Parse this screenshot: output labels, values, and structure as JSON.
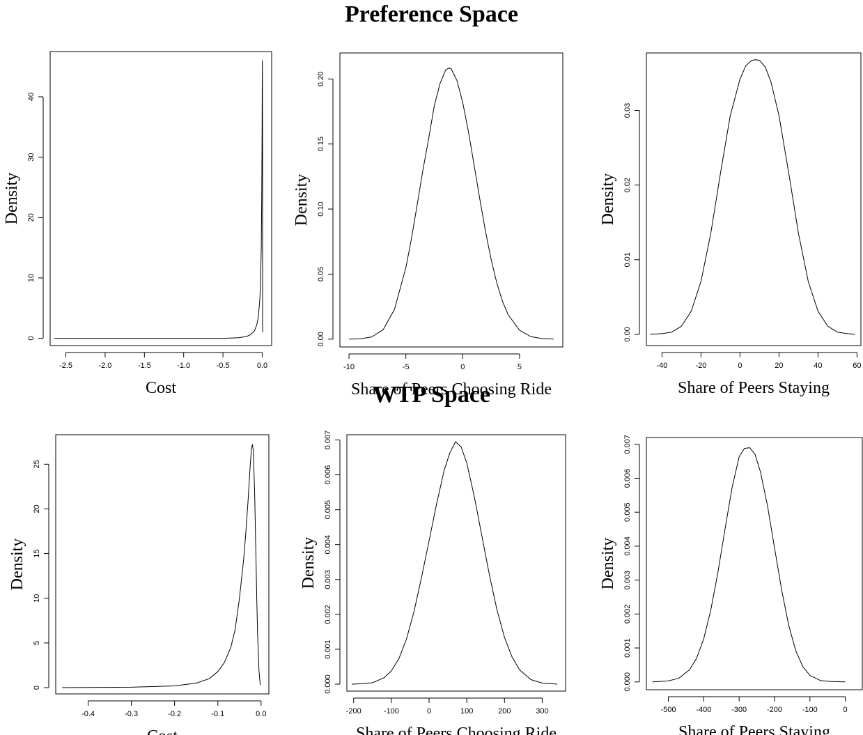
{
  "sections": {
    "top_title": "Preference Space",
    "bottom_title": "WTP Space"
  },
  "chart_data": [
    {
      "type": "line",
      "panel": "preference-cost",
      "xlabel": "Cost",
      "ylabel": "Density",
      "xlim": [
        -2.7,
        0.12
      ],
      "ylim": [
        -1.2,
        47.5
      ],
      "xticks": [
        -2.5,
        -2.0,
        -1.5,
        -1.0,
        -0.5,
        0.0
      ],
      "xtick_labels": [
        "-2.5",
        "-2.0",
        "-1.5",
        "-1.0",
        "-0.5",
        "0.0"
      ],
      "yticks": [
        0,
        10,
        20,
        30,
        40
      ],
      "ytick_labels": [
        "0",
        "10",
        "20",
        "30",
        "40"
      ],
      "x": [
        -2.65,
        -1.5,
        -0.8,
        -0.5,
        -0.3,
        -0.2,
        -0.15,
        -0.1,
        -0.07,
        -0.05,
        -0.03,
        -0.02,
        -0.012,
        -0.006,
        -0.002,
        0.0,
        0.002,
        0.005,
        0.005
      ],
      "y": [
        0,
        0,
        0,
        0,
        0.1,
        0.3,
        0.6,
        1.2,
        2.2,
        3.5,
        6.5,
        10,
        15,
        24,
        34,
        42,
        46,
        30,
        1
      ]
    },
    {
      "type": "line",
      "panel": "preference-ride",
      "xlabel": "Share of Peers Choosing Ride",
      "ylabel": "Density",
      "xlim": [
        -10.8,
        8.8
      ],
      "ylim": [
        -0.006,
        0.22
      ],
      "xticks": [
        -10,
        -5,
        0,
        5
      ],
      "xtick_labels": [
        "-10",
        "-5",
        "0",
        "5"
      ],
      "yticks": [
        0.0,
        0.05,
        0.1,
        0.15,
        0.2
      ],
      "ytick_labels": [
        "0.00",
        "0.05",
        "0.10",
        "0.15",
        "0.20"
      ],
      "x": [
        -10,
        -9,
        -8,
        -7,
        -6,
        -5,
        -4.5,
        -4,
        -3.5,
        -3,
        -2.5,
        -2,
        -1.5,
        -1.2,
        -1,
        -0.5,
        0,
        0.5,
        1,
        1.5,
        2,
        2.5,
        3,
        3.5,
        4,
        5,
        6,
        7,
        8
      ],
      "y": [
        0.0,
        0.0003,
        0.0017,
        0.0072,
        0.0229,
        0.0549,
        0.0777,
        0.1036,
        0.13,
        0.1539,
        0.1794,
        0.1964,
        0.2069,
        0.2085,
        0.2076,
        0.1986,
        0.1819,
        0.1596,
        0.1339,
        0.1078,
        0.083,
        0.0612,
        0.0431,
        0.029,
        0.0187,
        0.0068,
        0.0019,
        0.0004,
        0.0001
      ]
    },
    {
      "type": "line",
      "panel": "preference-staying",
      "xlabel": "Share of Peers Staying",
      "ylabel": "Density",
      "xlim": [
        -48,
        62
      ],
      "ylim": [
        -0.0015,
        0.0377
      ],
      "xticks": [
        -40,
        -20,
        0,
        20,
        40,
        60
      ],
      "xtick_labels": [
        "-40",
        "-20",
        "0",
        "20",
        "40",
        "60"
      ],
      "yticks": [
        0.0,
        0.01,
        0.02,
        0.03
      ],
      "ytick_labels": [
        "0.00",
        "0.01",
        "0.02",
        "0.03"
      ],
      "x": [
        -46,
        -40,
        -35,
        -30,
        -25,
        -20,
        -15,
        -10,
        -5,
        0,
        3,
        6,
        8,
        10,
        13,
        16,
        20,
        25,
        30,
        35,
        40,
        45,
        50,
        55,
        59
      ],
      "y": [
        0.0,
        0.0001,
        0.0003,
        0.0011,
        0.0031,
        0.0071,
        0.0135,
        0.0216,
        0.0293,
        0.0342,
        0.036,
        0.0367,
        0.0368,
        0.0367,
        0.0358,
        0.0337,
        0.0293,
        0.0216,
        0.0135,
        0.0071,
        0.0031,
        0.0011,
        0.0003,
        0.0001,
        0.0
      ]
    },
    {
      "type": "line",
      "panel": "wtp-cost",
      "xlabel": "Cost",
      "ylabel": "Density",
      "xlim": [
        -0.475,
        0.018
      ],
      "ylim": [
        -0.7,
        28.3
      ],
      "xticks": [
        -0.4,
        -0.3,
        -0.2,
        -0.1,
        0.0
      ],
      "xtick_labels": [
        "-0.4",
        "-0.3",
        "-0.2",
        "-0.1",
        "0.0"
      ],
      "yticks": [
        0,
        5,
        10,
        15,
        20,
        25
      ],
      "ytick_labels": [
        "0",
        "5",
        "10",
        "15",
        "20",
        "25"
      ],
      "x": [
        -0.46,
        -0.3,
        -0.2,
        -0.15,
        -0.12,
        -0.1,
        -0.085,
        -0.07,
        -0.06,
        -0.05,
        -0.04,
        -0.035,
        -0.03,
        -0.025,
        -0.022,
        -0.02,
        -0.018,
        -0.015,
        -0.012,
        -0.01,
        -0.008,
        -0.005,
        -0.002
      ],
      "y": [
        0,
        0.05,
        0.2,
        0.5,
        1.0,
        1.8,
        2.8,
        4.5,
        6.5,
        10,
        14.5,
        17.5,
        21,
        25,
        26.8,
        27.2,
        26.5,
        22,
        15,
        10,
        6,
        2,
        0.3
      ]
    },
    {
      "type": "line",
      "panel": "wtp-ride",
      "xlabel": "Share of Peers Choosing Ride",
      "ylabel": "Density",
      "xlim": [
        -218,
        362
      ],
      "ylim": [
        -0.0002,
        0.00715
      ],
      "xticks": [
        -200,
        -100,
        0,
        100,
        200,
        300
      ],
      "xtick_labels": [
        "-200",
        "-100",
        "0",
        "100",
        "200",
        "300"
      ],
      "yticks": [
        0.0,
        0.001,
        0.002,
        0.003,
        0.004,
        0.005,
        0.006,
        0.007
      ],
      "ytick_labels": [
        "0.000",
        "0.001",
        "0.002",
        "0.003",
        "0.004",
        "0.005",
        "0.006",
        "0.007"
      ],
      "x": [
        -205,
        -180,
        -150,
        -120,
        -100,
        -80,
        -60,
        -40,
        -20,
        0,
        20,
        40,
        55,
        70,
        85,
        100,
        120,
        140,
        160,
        180,
        200,
        220,
        240,
        270,
        300,
        340
      ],
      "y": [
        0.0,
        1e-05,
        4e-05,
        0.00018,
        0.00038,
        0.00073,
        0.00129,
        0.00208,
        0.00306,
        0.00411,
        0.00517,
        0.00613,
        0.00663,
        0.00695,
        0.0068,
        0.00634,
        0.00537,
        0.00425,
        0.00313,
        0.00213,
        0.00134,
        0.00078,
        0.00041,
        0.00013,
        3e-05,
        0.0
      ]
    },
    {
      "type": "line",
      "panel": "wtp-staying",
      "xlabel": "Share of Peers Staying",
      "ylabel": "Density",
      "xlim": [
        -562,
        48
      ],
      "ylim": [
        -0.00023,
        0.0072
      ],
      "xticks": [
        -500,
        -400,
        -300,
        -200,
        -100,
        0
      ],
      "xtick_labels": [
        "-500",
        "-400",
        "-300",
        "-200",
        "-100",
        "0"
      ],
      "yticks": [
        0.0,
        0.001,
        0.002,
        0.003,
        0.004,
        0.005,
        0.006,
        0.007
      ],
      "ytick_labels": [
        "0.000",
        "0.001",
        "0.002",
        "0.003",
        "0.004",
        "0.005",
        "0.006",
        "0.007"
      ],
      "x": [
        -545,
        -500,
        -470,
        -440,
        -420,
        -400,
        -380,
        -360,
        -340,
        -320,
        -300,
        -285,
        -270,
        -255,
        -240,
        -220,
        -200,
        -180,
        -160,
        -140,
        -120,
        -100,
        -70,
        -40,
        0
      ],
      "y": [
        0.0,
        3e-05,
        0.00011,
        0.00036,
        0.0007,
        0.00127,
        0.00212,
        0.00322,
        0.00449,
        0.00572,
        0.00663,
        0.00688,
        0.0069,
        0.0067,
        0.0062,
        0.0052,
        0.00395,
        0.00272,
        0.00167,
        0.00092,
        0.00045,
        0.00019,
        4e-05,
        1e-05,
        0.0
      ]
    }
  ]
}
